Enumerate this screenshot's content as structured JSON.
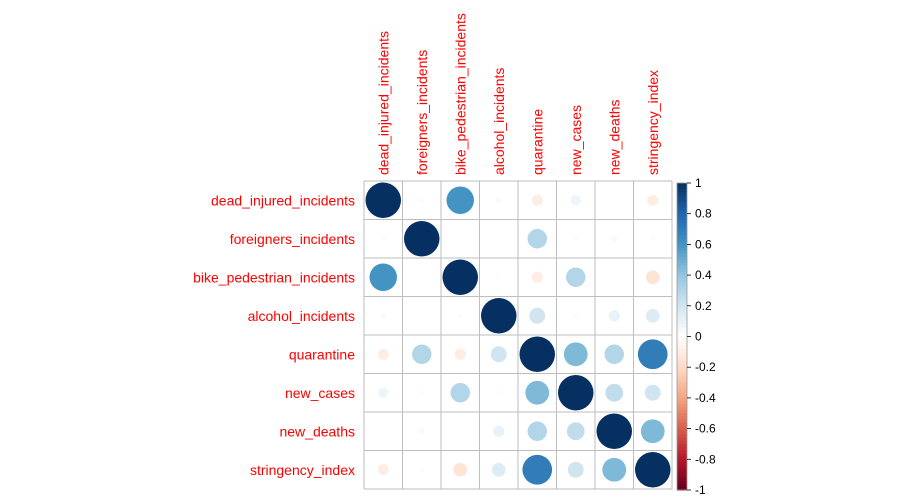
{
  "chart_data": {
    "type": "heatmap",
    "style": "corrplot-circles",
    "variables": [
      "dead_injured_incidents",
      "foreigners_incidents",
      "bike_pedestrian_incidents",
      "alcohol_incidents",
      "quarantine",
      "new_cases",
      "new_deaths",
      "stringency_index"
    ],
    "matrix": [
      [
        1.0,
        0.02,
        0.6,
        0.03,
        -0.1,
        0.08,
        0.01,
        -0.1
      ],
      [
        0.02,
        1.0,
        0.01,
        0.0,
        0.3,
        0.02,
        0.03,
        0.02
      ],
      [
        0.6,
        0.01,
        1.0,
        0.02,
        -0.1,
        0.3,
        0.01,
        -0.15
      ],
      [
        0.03,
        0.0,
        0.02,
        1.0,
        0.2,
        0.02,
        0.1,
        0.15
      ],
      [
        -0.1,
        0.3,
        -0.1,
        0.2,
        1.0,
        0.45,
        0.3,
        0.7
      ],
      [
        0.08,
        0.02,
        0.3,
        0.02,
        0.45,
        1.0,
        0.25,
        0.2
      ],
      [
        0.01,
        0.03,
        0.01,
        0.1,
        0.3,
        0.25,
        1.0,
        0.45
      ],
      [
        -0.1,
        0.02,
        -0.15,
        0.15,
        0.7,
        0.2,
        0.45,
        1.0
      ]
    ],
    "colorbar": {
      "range": [
        -1,
        1
      ],
      "ticks": [
        "1",
        "0.8",
        "0.6",
        "0.4",
        "0.2",
        "0",
        "-0.2",
        "-0.4",
        "-0.6",
        "-0.8",
        "-1"
      ]
    },
    "colors": {
      "label": "#ff0000",
      "grid": "#bebebe",
      "scale": [
        "#67001f",
        "#b2182b",
        "#d6604d",
        "#f4a582",
        "#fddbc7",
        "#ffffff",
        "#d1e5f0",
        "#92c5de",
        "#4393c3",
        "#2166ac",
        "#053061"
      ]
    }
  }
}
